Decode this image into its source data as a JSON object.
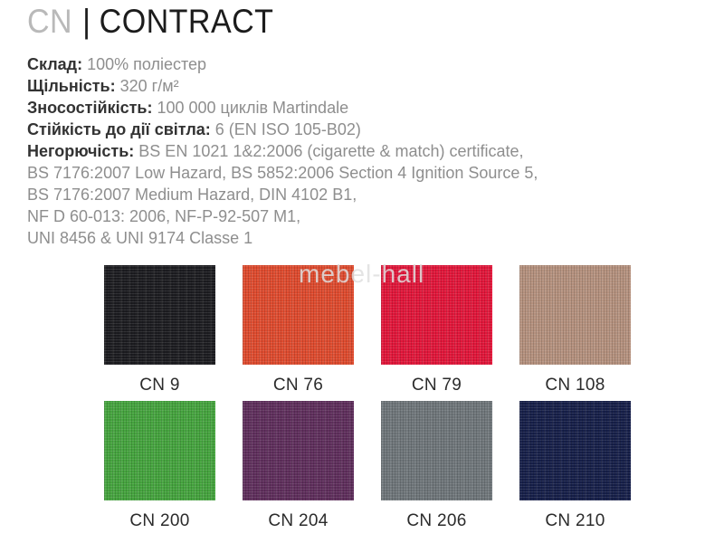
{
  "header": {
    "brand": "CN",
    "separator": "|",
    "title": "CONTRACT"
  },
  "specs": {
    "lines": [
      {
        "label": "Склад: ",
        "value": "100% поліестер"
      },
      {
        "label": "Щільність: ",
        "value": "320 г/м²"
      },
      {
        "label": "Зносостійкість: ",
        "value": "100 000 циклів Martindale"
      },
      {
        "label": "Стійкість до дії світла: ",
        "value": "6 (EN ISO 105-B02)"
      },
      {
        "label": "Негорючість: ",
        "value": "BS EN 1021 1&2:2006 (cigarette & match) certificate,"
      },
      {
        "label": "",
        "value": "BS 7176:2007 Low Hazard, BS 5852:2006 Section 4 Ignition Source 5,"
      },
      {
        "label": "",
        "value": "BS 7176:2007 Medium Hazard, DIN 4102 B1,"
      },
      {
        "label": "",
        "value": "NF D 60-013: 2006, NF-P-92-507 M1,"
      },
      {
        "label": "",
        "value": "UNI 8456 & UNI 9174 Classe 1"
      }
    ]
  },
  "watermark": "mebel-hall",
  "swatches": [
    {
      "code": "CN 9",
      "color": "#1c1c20"
    },
    {
      "code": "CN 76",
      "color": "#df4b2e"
    },
    {
      "code": "CN 79",
      "color": "#e2163a"
    },
    {
      "code": "CN 108",
      "color": "#b5917e"
    },
    {
      "code": "CN 200",
      "color": "#45a43e"
    },
    {
      "code": "CN 204",
      "color": "#5f2e5c"
    },
    {
      "code": "CN 206",
      "color": "#6f767a"
    },
    {
      "code": "CN 210",
      "color": "#161f49"
    }
  ]
}
